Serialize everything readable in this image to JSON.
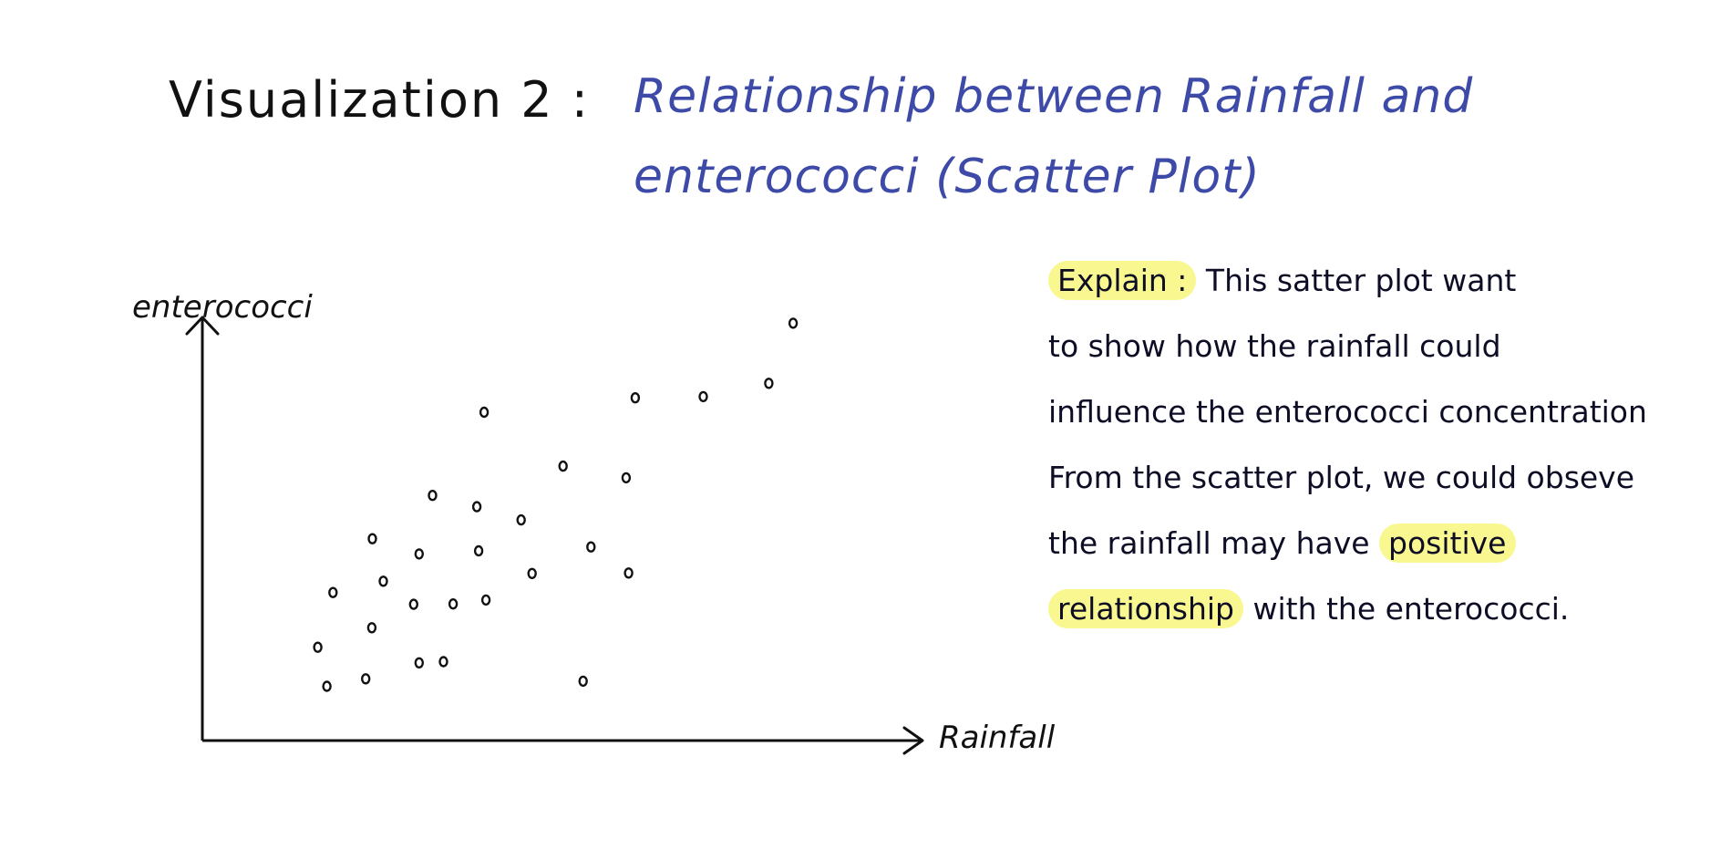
{
  "heading": {
    "label": "Visualization 2 :",
    "title_line1": "Relationship between Rainfall and",
    "title_line2": "enterococci (Scatter Plot)"
  },
  "colors": {
    "title": "#3d4aa8",
    "ink": "#111111",
    "highlight": "#f9f78f"
  },
  "chart_data": {
    "type": "scatter",
    "title": "",
    "xlabel": "Rainfall",
    "ylabel": "enterococci",
    "xlim": [
      0,
      100
    ],
    "ylim": [
      0,
      100
    ],
    "grid": false,
    "x_ticks_shown": false,
    "y_ticks_shown": false,
    "series": [
      {
        "points": [
          {
            "x": 10.3,
            "y": 6.9
          },
          {
            "x": 16.7,
            "y": 8.8
          },
          {
            "x": 8.8,
            "y": 16.9
          },
          {
            "x": 11.3,
            "y": 30.9
          },
          {
            "x": 17.7,
            "y": 21.9
          },
          {
            "x": 19.6,
            "y": 33.8
          },
          {
            "x": 17.8,
            "y": 44.7
          },
          {
            "x": 25.5,
            "y": 12.9
          },
          {
            "x": 29.5,
            "y": 13.2
          },
          {
            "x": 24.6,
            "y": 27.9
          },
          {
            "x": 25.5,
            "y": 40.8
          },
          {
            "x": 27.7,
            "y": 55.8
          },
          {
            "x": 31.1,
            "y": 28.0
          },
          {
            "x": 36.5,
            "y": 29.0
          },
          {
            "x": 35.3,
            "y": 41.6
          },
          {
            "x": 35.0,
            "y": 52.9
          },
          {
            "x": 36.2,
            "y": 77.1
          },
          {
            "x": 42.3,
            "y": 49.5
          },
          {
            "x": 44.1,
            "y": 35.8
          },
          {
            "x": 49.2,
            "y": 63.3
          },
          {
            "x": 52.5,
            "y": 8.2
          },
          {
            "x": 53.8,
            "y": 42.6
          },
          {
            "x": 59.6,
            "y": 60.3
          },
          {
            "x": 60.0,
            "y": 35.9
          },
          {
            "x": 61.1,
            "y": 80.8
          },
          {
            "x": 72.3,
            "y": 81.1
          },
          {
            "x": 83.1,
            "y": 84.5
          },
          {
            "x": 87.1,
            "y": 99.9
          }
        ]
      }
    ]
  },
  "explain": {
    "lead": "Explain :",
    "line1_rest": "This satter plot want",
    "line2": "to show how the rainfall could",
    "line3": "influence the enterococci concentration",
    "line4": "From the scatter plot, we could obseve",
    "line5_before": "the rainfall may have",
    "line5_highlight": "positive",
    "line6_highlight": "relationship",
    "line6_after": "with the enterococci."
  }
}
